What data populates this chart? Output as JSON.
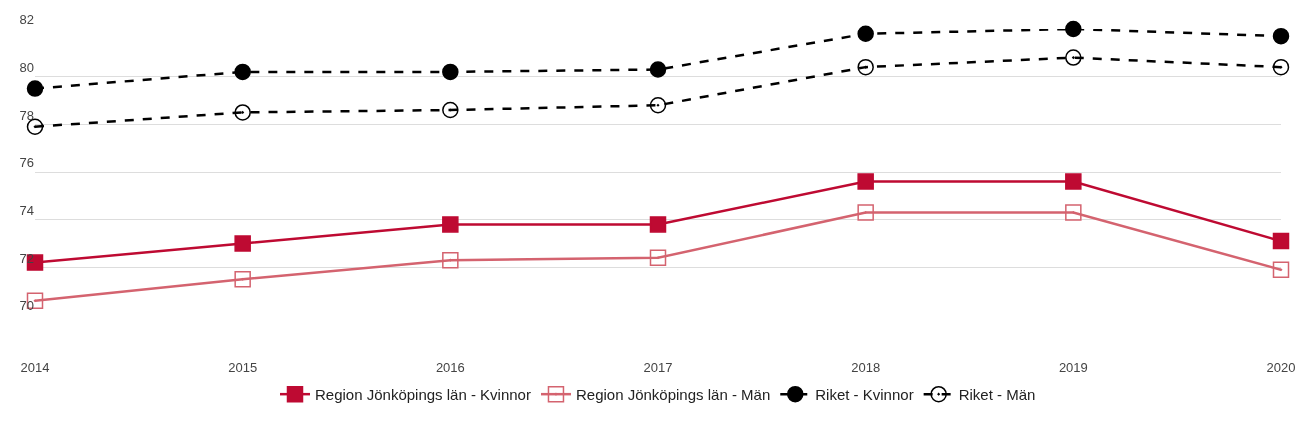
{
  "chart_data": {
    "type": "line",
    "x": [
      2014,
      2015,
      2016,
      2017,
      2018,
      2019,
      2020
    ],
    "xlim": [
      2014,
      2020
    ],
    "xticks": [
      2014,
      2015,
      2016,
      2017,
      2018,
      2019,
      2020
    ],
    "ylim": [
      70,
      82
    ],
    "yticks": [
      70,
      72,
      74,
      76,
      78,
      80,
      82
    ],
    "grid": "y",
    "legend": "bottom",
    "series": [
      {
        "name": "Region Jönköpings län - Kvinnor",
        "color": "#be0a32",
        "marker": "square",
        "line_style": "solid",
        "values": [
          72.2,
          73.0,
          73.8,
          73.8,
          75.6,
          75.6,
          73.1
        ]
      },
      {
        "name": "Region Jönköpings län - Män",
        "color": "#d4636f",
        "marker": "square",
        "line_style": "solid",
        "values": [
          70.6,
          71.5,
          72.3,
          72.4,
          74.3,
          74.3,
          71.9
        ]
      },
      {
        "name": "Riket - Kvinnor",
        "color": "#000000",
        "marker": "circle",
        "line_style": "dashed",
        "values": [
          79.5,
          80.2,
          80.2,
          80.3,
          81.8,
          82.0,
          81.7
        ]
      },
      {
        "name": "Riket - Män",
        "color": "#000000",
        "marker": "circle",
        "line_style": "dashed",
        "values": [
          77.9,
          78.5,
          78.6,
          78.8,
          80.4,
          80.8,
          80.4
        ]
      }
    ]
  }
}
